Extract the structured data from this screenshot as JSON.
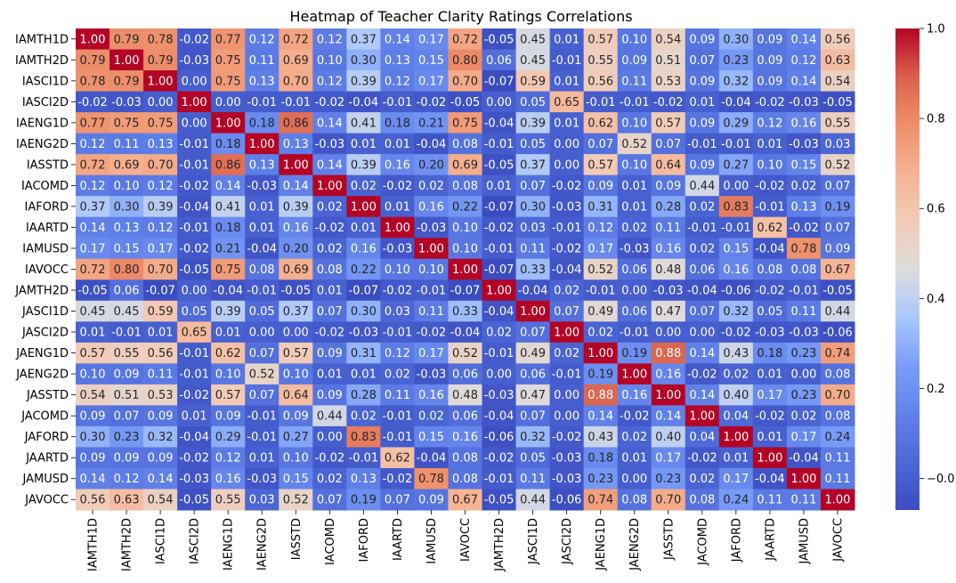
{
  "chart_data": {
    "type": "heatmap",
    "title": "Heatmap of Teacher Clarity Ratings Correlations",
    "xlabel": "",
    "ylabel": "",
    "labels": [
      "IAMTH1D",
      "IAMTH2D",
      "IASCI1D",
      "IASCI2D",
      "IAENG1D",
      "IAENG2D",
      "IASSTD",
      "IACOMD",
      "IAFORD",
      "IAARTD",
      "IAMUSD",
      "IAVOCC",
      "JAMTH2D",
      "JASCI1D",
      "JASCI2D",
      "JAENG1D",
      "JAENG2D",
      "JASSTD",
      "JACOMD",
      "JAFORD",
      "JAARTD",
      "JAMUSD",
      "JAVOCC"
    ],
    "matrix": [
      [
        1.0,
        0.79,
        0.78,
        -0.02,
        0.77,
        0.12,
        0.72,
        0.12,
        0.37,
        0.14,
        0.17,
        0.72,
        -0.05,
        0.45,
        0.01,
        0.57,
        0.1,
        0.54,
        0.09,
        0.3,
        0.09,
        0.14,
        0.56
      ],
      [
        0.79,
        1.0,
        0.79,
        -0.03,
        0.75,
        0.11,
        0.69,
        0.1,
        0.3,
        0.13,
        0.15,
        0.8,
        0.06,
        0.45,
        -0.01,
        0.55,
        0.09,
        0.51,
        0.07,
        0.23,
        0.09,
        0.12,
        0.63
      ],
      [
        0.78,
        0.79,
        1.0,
        -0.0,
        0.75,
        0.13,
        0.7,
        0.12,
        0.39,
        0.12,
        0.17,
        0.7,
        -0.07,
        0.59,
        0.01,
        0.56,
        0.11,
        0.53,
        0.09,
        0.32,
        0.09,
        0.14,
        0.54
      ],
      [
        -0.02,
        -0.03,
        -0.0,
        1.0,
        0.0,
        -0.01,
        -0.01,
        -0.02,
        -0.04,
        -0.01,
        -0.02,
        -0.05,
        0.0,
        0.05,
        0.65,
        -0.01,
        -0.01,
        -0.02,
        0.01,
        -0.04,
        -0.02,
        -0.03,
        -0.05
      ],
      [
        0.77,
        0.75,
        0.75,
        0.0,
        1.0,
        0.18,
        0.86,
        0.14,
        0.41,
        0.18,
        0.21,
        0.75,
        -0.04,
        0.39,
        0.01,
        0.62,
        0.1,
        0.57,
        0.09,
        0.29,
        0.12,
        0.16,
        0.55
      ],
      [
        0.12,
        0.11,
        0.13,
        -0.01,
        0.18,
        1.0,
        0.13,
        -0.03,
        0.01,
        0.01,
        -0.04,
        0.08,
        -0.01,
        0.05,
        0.0,
        0.07,
        0.52,
        0.07,
        -0.01,
        -0.01,
        0.01,
        -0.03,
        0.03
      ],
      [
        0.72,
        0.69,
        0.7,
        -0.01,
        0.86,
        0.13,
        1.0,
        0.14,
        0.39,
        0.16,
        0.2,
        0.69,
        -0.05,
        0.37,
        0.0,
        0.57,
        0.1,
        0.64,
        0.09,
        0.27,
        0.1,
        0.15,
        0.52
      ],
      [
        0.12,
        0.1,
        0.12,
        -0.02,
        0.14,
        -0.03,
        0.14,
        1.0,
        0.02,
        -0.02,
        0.02,
        0.08,
        0.01,
        0.07,
        -0.02,
        0.09,
        0.01,
        0.09,
        0.44,
        -0.0,
        -0.02,
        0.02,
        0.07
      ],
      [
        0.37,
        0.3,
        0.39,
        -0.04,
        0.41,
        0.01,
        0.39,
        0.02,
        1.0,
        0.01,
        0.16,
        0.22,
        -0.07,
        0.3,
        -0.03,
        0.31,
        0.01,
        0.28,
        0.02,
        0.83,
        -0.01,
        0.13,
        0.19
      ],
      [
        0.14,
        0.13,
        0.12,
        -0.01,
        0.18,
        0.01,
        0.16,
        -0.02,
        0.01,
        1.0,
        -0.03,
        0.1,
        -0.02,
        0.03,
        -0.01,
        0.12,
        0.02,
        0.11,
        -0.01,
        -0.01,
        0.62,
        -0.02,
        0.07
      ],
      [
        0.17,
        0.15,
        0.17,
        -0.02,
        0.21,
        -0.04,
        0.2,
        0.02,
        0.16,
        -0.03,
        1.0,
        0.1,
        -0.01,
        0.11,
        -0.02,
        0.17,
        -0.03,
        0.16,
        0.02,
        0.15,
        -0.04,
        0.78,
        0.09
      ],
      [
        0.72,
        0.8,
        0.7,
        -0.05,
        0.75,
        0.08,
        0.69,
        0.08,
        0.22,
        0.1,
        0.1,
        1.0,
        -0.07,
        0.33,
        -0.04,
        0.52,
        0.06,
        0.48,
        0.06,
        0.16,
        0.08,
        0.08,
        0.67
      ],
      [
        -0.05,
        0.06,
        -0.07,
        0.0,
        -0.04,
        -0.01,
        -0.05,
        0.01,
        -0.07,
        -0.02,
        -0.01,
        -0.07,
        1.0,
        -0.04,
        0.02,
        -0.01,
        0.0,
        -0.03,
        -0.04,
        -0.06,
        -0.02,
        -0.01,
        -0.05
      ],
      [
        0.45,
        0.45,
        0.59,
        0.05,
        0.39,
        0.05,
        0.37,
        0.07,
        0.3,
        0.03,
        0.11,
        0.33,
        -0.04,
        1.0,
        0.07,
        0.49,
        0.06,
        0.47,
        0.07,
        0.32,
        0.05,
        0.11,
        0.44
      ],
      [
        0.01,
        -0.01,
        0.01,
        0.65,
        0.01,
        0.0,
        0.0,
        -0.02,
        -0.03,
        -0.01,
        -0.02,
        -0.04,
        0.02,
        0.07,
        1.0,
        0.02,
        -0.01,
        0.0,
        0.0,
        -0.02,
        -0.03,
        -0.03,
        -0.06
      ],
      [
        0.57,
        0.55,
        0.56,
        -0.01,
        0.62,
        0.07,
        0.57,
        0.09,
        0.31,
        0.12,
        0.17,
        0.52,
        -0.01,
        0.49,
        0.02,
        1.0,
        0.19,
        0.88,
        0.14,
        0.43,
        0.18,
        0.23,
        0.74
      ],
      [
        0.1,
        0.09,
        0.11,
        -0.01,
        0.1,
        0.52,
        0.1,
        0.01,
        0.01,
        0.02,
        -0.03,
        0.06,
        0.0,
        0.06,
        -0.01,
        0.19,
        1.0,
        0.16,
        -0.02,
        0.02,
        0.01,
        -0.0,
        0.08
      ],
      [
        0.54,
        0.51,
        0.53,
        -0.02,
        0.57,
        0.07,
        0.64,
        0.09,
        0.28,
        0.11,
        0.16,
        0.48,
        -0.03,
        0.47,
        0.0,
        0.88,
        0.16,
        1.0,
        0.14,
        0.4,
        0.17,
        0.23,
        0.7
      ],
      [
        0.09,
        0.07,
        0.09,
        0.01,
        0.09,
        -0.01,
        0.09,
        0.44,
        0.02,
        -0.01,
        0.02,
        0.06,
        -0.04,
        0.07,
        0.0,
        0.14,
        -0.02,
        0.14,
        1.0,
        0.04,
        -0.02,
        0.02,
        0.08
      ],
      [
        0.3,
        0.23,
        0.32,
        -0.04,
        0.29,
        -0.01,
        0.27,
        -0.0,
        0.83,
        -0.01,
        0.15,
        0.16,
        -0.06,
        0.32,
        -0.02,
        0.43,
        0.02,
        0.4,
        0.04,
        1.0,
        0.01,
        0.17,
        0.24
      ],
      [
        0.09,
        0.09,
        0.09,
        -0.02,
        0.12,
        0.01,
        0.1,
        -0.02,
        -0.01,
        0.62,
        -0.04,
        0.08,
        -0.02,
        0.05,
        -0.03,
        0.18,
        0.01,
        0.17,
        -0.02,
        0.01,
        1.0,
        -0.04,
        0.11
      ],
      [
        0.14,
        0.12,
        0.14,
        -0.03,
        0.16,
        -0.03,
        0.15,
        0.02,
        0.13,
        -0.02,
        0.78,
        0.08,
        -0.01,
        0.11,
        -0.03,
        0.23,
        -0.0,
        0.23,
        0.02,
        0.17,
        -0.04,
        1.0,
        0.11
      ],
      [
        0.56,
        0.63,
        0.54,
        -0.05,
        0.55,
        0.03,
        0.52,
        0.07,
        0.19,
        0.07,
        0.09,
        0.67,
        -0.05,
        0.44,
        -0.06,
        0.74,
        0.08,
        0.7,
        0.08,
        0.24,
        0.11,
        0.11,
        1.0
      ]
    ],
    "colormap": "coolwarm",
    "vmin": -0.07,
    "vmax": 1.0,
    "colorbar_ticks": [
      -0.0,
      0.2,
      0.4,
      0.6,
      0.8,
      1.0
    ],
    "colorbar_tick_labels": [
      "−0.0",
      "0.2",
      "0.4",
      "0.6",
      "0.8",
      "1.0"
    ],
    "grid": false,
    "legend": "colorbar-right"
  }
}
